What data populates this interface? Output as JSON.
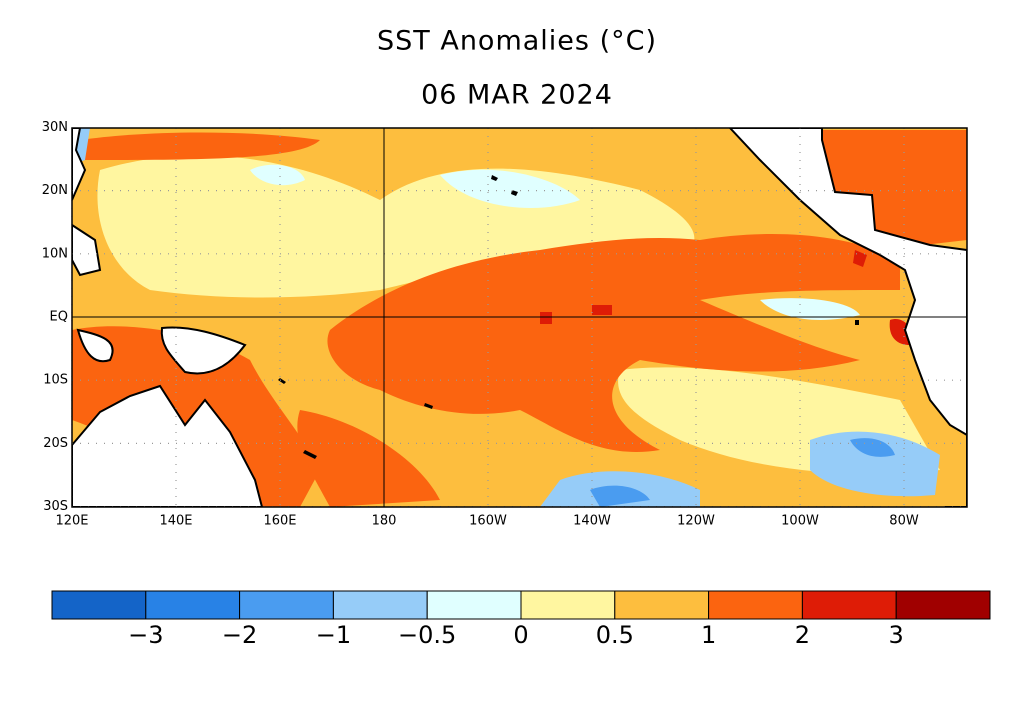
{
  "map": {
    "title": "SST Anomalies (°C)",
    "subtitle": "06 MAR 2024",
    "lat_ticks": [
      {
        "value": 30,
        "label": "30N"
      },
      {
        "value": 20,
        "label": "20N"
      },
      {
        "value": 10,
        "label": "10N"
      },
      {
        "value": 0,
        "label": "EQ"
      },
      {
        "value": -10,
        "label": "10S"
      },
      {
        "value": -20,
        "label": "20S"
      },
      {
        "value": -30,
        "label": "30S"
      }
    ],
    "lon_ticks": [
      {
        "value": 120,
        "label": "120E"
      },
      {
        "value": 140,
        "label": "140E"
      },
      {
        "value": 160,
        "label": "160E"
      },
      {
        "value": 180,
        "label": "180"
      },
      {
        "value": 200,
        "label": "160W"
      },
      {
        "value": 220,
        "label": "140W"
      },
      {
        "value": 240,
        "label": "120W"
      },
      {
        "value": 260,
        "label": "100W"
      },
      {
        "value": 280,
        "label": "80W"
      }
    ],
    "colorbar": {
      "colors": [
        "#1464c8",
        "#2882e6",
        "#4a9cf0",
        "#96ccf8",
        "#e0ffff",
        "#fff6a0",
        "#fdbe3e",
        "#fb6410",
        "#de1c06",
        "#a00000"
      ],
      "levels": [
        {
          "value": -3,
          "label": "−3"
        },
        {
          "value": -2,
          "label": "−2"
        },
        {
          "value": -1,
          "label": "−1"
        },
        {
          "value": -0.5,
          "label": "−0.5"
        },
        0,
        0.5,
        1,
        2,
        3
      ]
    }
  }
}
